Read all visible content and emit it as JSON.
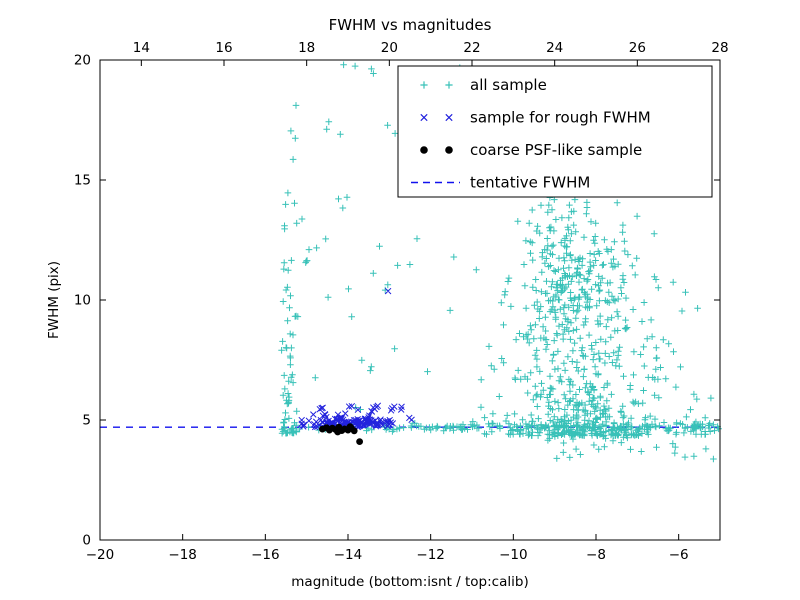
{
  "title": "FWHM vs magnitudes",
  "xlabel": "magnitude (bottom:isnt / top:calib)",
  "ylabel": "FWHM (pix)",
  "colors": {
    "all_sample": "#38c1b8",
    "rough_fwhm": "#2222dd",
    "psf_sample": "#000000",
    "tentative_line": "#1111ee",
    "axis": "#000000",
    "legend_bg": "#ffffff",
    "background": "#ffffff"
  },
  "axes": {
    "x_bottom": {
      "min": -20,
      "max": -5,
      "ticks": {
        "values": [
          -20,
          -18,
          -16,
          -14,
          -12,
          -10,
          -8,
          -6
        ],
        "labels": [
          "−20",
          "−18",
          "−16",
          "−14",
          "−12",
          "−10",
          "−8",
          "−6"
        ]
      }
    },
    "x_top": {
      "min": 13,
      "max": 28,
      "ticks": {
        "values": [
          14,
          16,
          18,
          20,
          22,
          24,
          26,
          28
        ],
        "labels": [
          "14",
          "16",
          "18",
          "20",
          "22",
          "24",
          "26",
          "28"
        ]
      }
    },
    "y": {
      "min": 0,
      "max": 20,
      "ticks": {
        "values": [
          0,
          5,
          10,
          15,
          20
        ],
        "labels": [
          "0",
          "5",
          "10",
          "15",
          "20"
        ]
      }
    }
  },
  "legend": [
    {
      "label": "all sample",
      "marker": "plus",
      "color": "#38c1b8"
    },
    {
      "label": "sample for rough FWHM",
      "marker": "cross",
      "color": "#2222dd"
    },
    {
      "label": "coarse PSF-like sample",
      "marker": "dot",
      "color": "#000000"
    },
    {
      "label": "tentative FWHM",
      "marker": "dashed-line",
      "color": "#1111ee"
    }
  ],
  "chart_data": {
    "type": "scatter",
    "title": "FWHM vs magnitudes",
    "xlabel": "magnitude (bottom:isnt / top:calib)",
    "ylabel": "FWHM (pix)",
    "x_bottom_range": [
      -20,
      -5
    ],
    "x_top_range": [
      13,
      28
    ],
    "y_range": [
      0,
      20
    ],
    "tentative_fwhm": 4.7,
    "seed": 1337,
    "series": [
      {
        "name": "all sample",
        "marker": "plus",
        "color": "#38c1b8",
        "clusters": [
          {
            "count": 75,
            "x": {
              "dist": "uniform",
              "min": -15.62,
              "max": -15.2
            },
            "y": {
              "dist": "power",
              "min": 4.45,
              "range": 15.3,
              "exp": 2.6
            }
          },
          {
            "count": 30,
            "x": {
              "dist": "uniform",
              "min": -15.3,
              "max": -12.6
            },
            "y": {
              "dist": "gauss",
              "mean": 4.68,
              "sd": 0.09
            }
          },
          {
            "count": 48,
            "x": {
              "dist": "uniform",
              "min": -15.2,
              "max": -10.8
            },
            "y": {
              "dist": "uniform",
              "min": 5.2,
              "max": 19.8
            }
          },
          {
            "count": 170,
            "x": {
              "dist": "uniform",
              "min": -12.6,
              "max": -5.03
            },
            "y": {
              "dist": "gauss",
              "mean": 4.7,
              "sd": 0.1
            }
          },
          {
            "count": 430,
            "x": {
              "dist": "gauss",
              "mean": -8.4,
              "sd": 0.78
            },
            "y": {
              "dist": "power",
              "min": 4.35,
              "range": 8.6,
              "exp": 2.1
            }
          },
          {
            "count": 150,
            "x": {
              "dist": "gauss",
              "mean": -8.55,
              "sd": 0.65
            },
            "y": {
              "dist": "gauss",
              "mean": 10.4,
              "sd": 1.5
            }
          },
          {
            "count": 130,
            "x": {
              "dist": "uniform",
              "min": -10.9,
              "max": -5.1
            },
            "y": {
              "dist": "power",
              "min": 4.4,
              "range": 7.0,
              "exp": 2.3
            }
          },
          {
            "count": 32,
            "x": {
              "dist": "uniform",
              "min": -9.3,
              "max": -5.05
            },
            "y": {
              "dist": "uniform",
              "min": 3.35,
              "max": 4.45
            }
          },
          {
            "count": 28,
            "x": {
              "dist": "gauss",
              "mean": -9.0,
              "sd": 0.8
            },
            "y": {
              "dist": "uniform",
              "min": 12.8,
              "max": 15.4
            }
          }
        ],
        "points": []
      },
      {
        "name": "sample for rough FWHM",
        "marker": "cross",
        "color": "#2222dd",
        "clusters": [
          {
            "count": 115,
            "x": {
              "dist": "gauss",
              "mean": -13.9,
              "sd": 0.6,
              "clip": [
                -15.12,
                -12.12
              ]
            },
            "y": {
              "dist": "gauss",
              "mean": 4.88,
              "sd": 0.1
            }
          },
          {
            "count": 28,
            "x": {
              "dist": "uniform",
              "min": -14.85,
              "max": -12.3
            },
            "y": {
              "dist": "uniform",
              "min": 5.0,
              "max": 5.6
            }
          }
        ],
        "points": [
          [
            -13.03,
            10.37
          ]
        ]
      },
      {
        "name": "coarse PSF-like sample",
        "marker": "dot",
        "color": "#000000",
        "clusters": [],
        "points": [
          [
            -14.62,
            4.62
          ],
          [
            -14.52,
            4.68
          ],
          [
            -14.45,
            4.58
          ],
          [
            -14.38,
            4.66
          ],
          [
            -14.3,
            4.6
          ],
          [
            -14.25,
            4.5
          ],
          [
            -14.22,
            4.7
          ],
          [
            -14.15,
            4.56
          ],
          [
            -14.08,
            4.63
          ],
          [
            -14.0,
            4.58
          ],
          [
            -13.95,
            4.72
          ],
          [
            -13.92,
            4.66
          ],
          [
            -13.85,
            4.55
          ],
          [
            -13.72,
            4.1
          ]
        ]
      }
    ]
  }
}
